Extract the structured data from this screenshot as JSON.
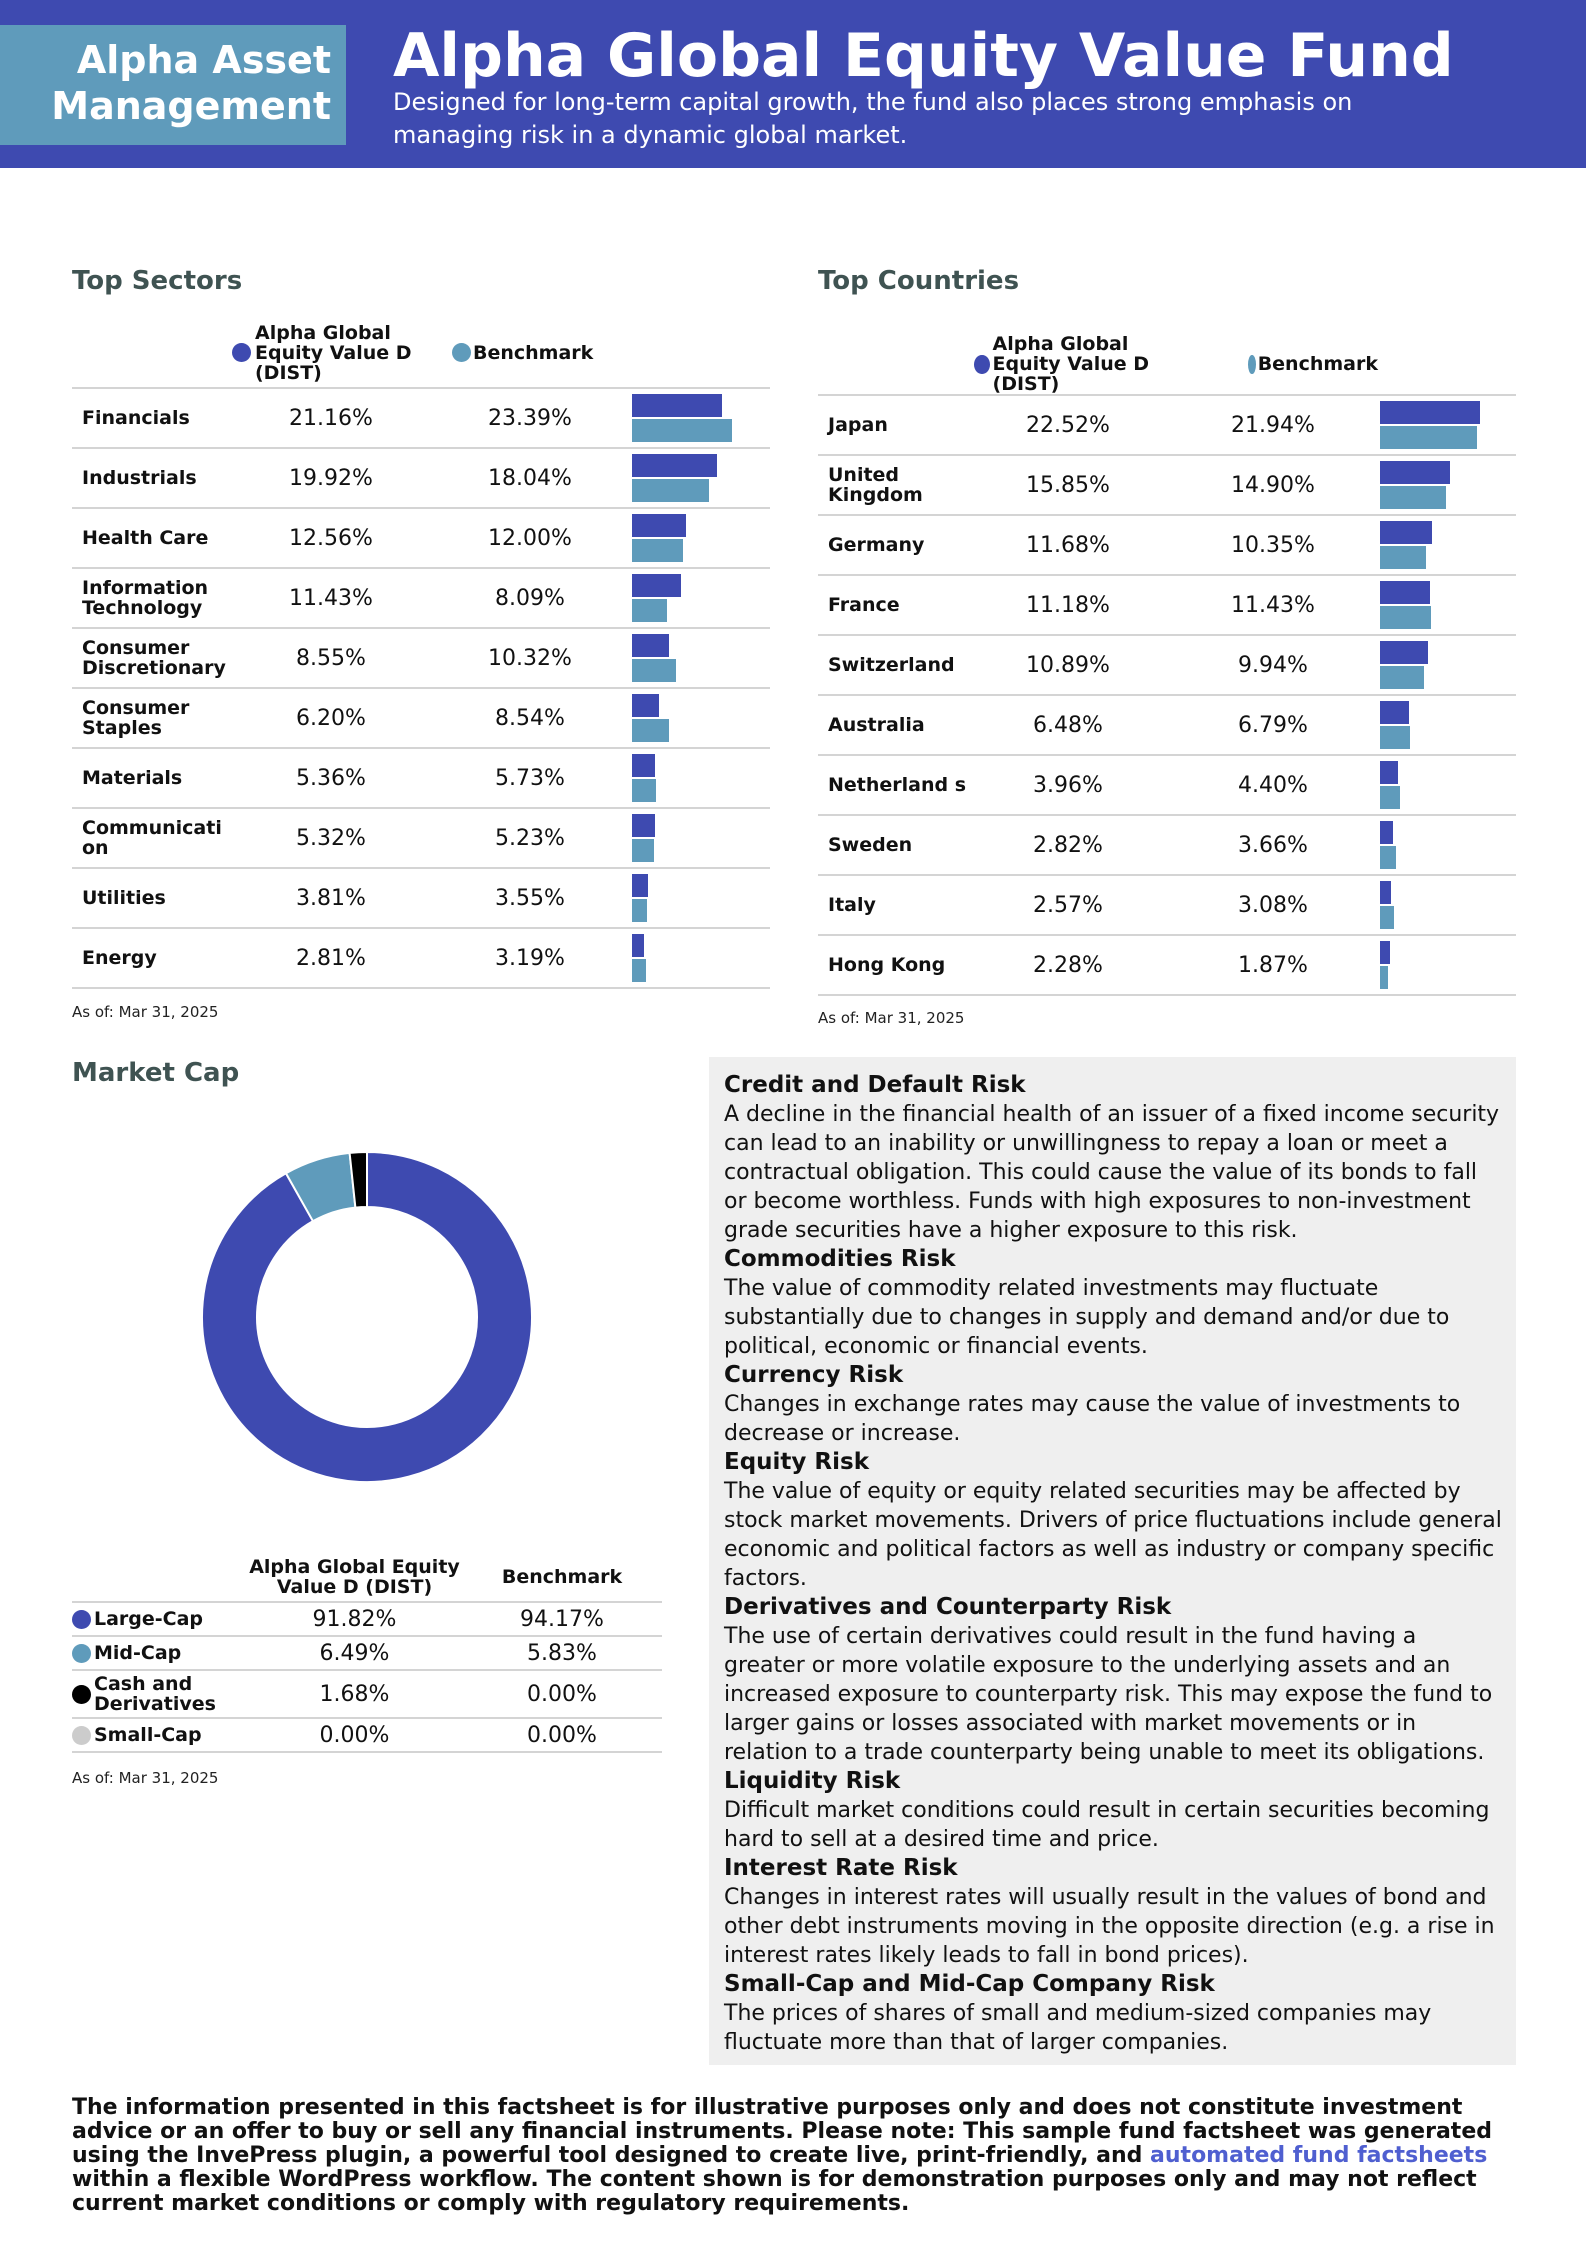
{
  "header": {
    "logo_line1": "Alpha Asset",
    "logo_line2": "Management",
    "title": "Alpha Global Equity Value Fund",
    "subtitle": "Designed for long-term capital growth, the fund also places strong emphasis on managing risk in a dynamic global market."
  },
  "colors": {
    "fund": "#3e4ab0",
    "benchmark": "#5f9bbb",
    "cash": "#000000",
    "small_cap": "#cccccc"
  },
  "sectors": {
    "title": "Top Sectors",
    "fund_header": "Alpha Global Equity Value D (DIST)",
    "benchmark_header": "Benchmark",
    "as_of": "As of: Mar 31, 2025",
    "rows": [
      {
        "label": "Financials",
        "fund": "21.16%",
        "benchmark": "23.39%",
        "fund_value": 21.16,
        "benchmark_value": 23.39
      },
      {
        "label": "Industrials",
        "fund": "19.92%",
        "benchmark": "18.04%",
        "fund_value": 19.92,
        "benchmark_value": 18.04
      },
      {
        "label": "Health Care",
        "fund": "12.56%",
        "benchmark": "12.00%",
        "fund_value": 12.56,
        "benchmark_value": 12.0
      },
      {
        "label": "Information Technology",
        "fund": "11.43%",
        "benchmark": "8.09%",
        "fund_value": 11.43,
        "benchmark_value": 8.09
      },
      {
        "label": "Consumer Discretionary",
        "fund": "8.55%",
        "benchmark": "10.32%",
        "fund_value": 8.55,
        "benchmark_value": 10.32
      },
      {
        "label": "Consumer Staples",
        "fund": "6.20%",
        "benchmark": "8.54%",
        "fund_value": 6.2,
        "benchmark_value": 8.54
      },
      {
        "label": "Materials",
        "fund": "5.36%",
        "benchmark": "5.73%",
        "fund_value": 5.36,
        "benchmark_value": 5.73
      },
      {
        "label": "Communicati on",
        "fund": "5.32%",
        "benchmark": "5.23%",
        "fund_value": 5.32,
        "benchmark_value": 5.23
      },
      {
        "label": "Utilities",
        "fund": "3.81%",
        "benchmark": "3.55%",
        "fund_value": 3.81,
        "benchmark_value": 3.55
      },
      {
        "label": "Energy",
        "fund": "2.81%",
        "benchmark": "3.19%",
        "fund_value": 2.81,
        "benchmark_value": 3.19
      }
    ]
  },
  "countries": {
    "title": "Top Countries",
    "fund_header": "Alpha Global Equity Value D (DIST)",
    "benchmark_header": "Benchmark",
    "as_of": "As of: Mar 31, 2025",
    "rows": [
      {
        "label": "Japan",
        "fund": "22.52%",
        "benchmark": "21.94%",
        "fund_value": 22.52,
        "benchmark_value": 21.94
      },
      {
        "label": "United Kingdom",
        "fund": "15.85%",
        "benchmark": "14.90%",
        "fund_value": 15.85,
        "benchmark_value": 14.9
      },
      {
        "label": "Germany",
        "fund": "11.68%",
        "benchmark": "10.35%",
        "fund_value": 11.68,
        "benchmark_value": 10.35
      },
      {
        "label": "France",
        "fund": "11.18%",
        "benchmark": "11.43%",
        "fund_value": 11.18,
        "benchmark_value": 11.43
      },
      {
        "label": "Switzerland",
        "fund": "10.89%",
        "benchmark": "9.94%",
        "fund_value": 10.89,
        "benchmark_value": 9.94
      },
      {
        "label": "Australia",
        "fund": "6.48%",
        "benchmark": "6.79%",
        "fund_value": 6.48,
        "benchmark_value": 6.79
      },
      {
        "label": "Netherland s",
        "fund": "3.96%",
        "benchmark": "4.40%",
        "fund_value": 3.96,
        "benchmark_value": 4.4
      },
      {
        "label": "Sweden",
        "fund": "2.82%",
        "benchmark": "3.66%",
        "fund_value": 2.82,
        "benchmark_value": 3.66
      },
      {
        "label": "Italy",
        "fund": "2.57%",
        "benchmark": "3.08%",
        "fund_value": 2.57,
        "benchmark_value": 3.08
      },
      {
        "label": "Hong Kong",
        "fund": "2.28%",
        "benchmark": "1.87%",
        "fund_value": 2.28,
        "benchmark_value": 1.87
      }
    ]
  },
  "market_cap": {
    "title": "Market Cap",
    "fund_header": "Alpha Global Equity Value D (DIST)",
    "benchmark_header": "Benchmark",
    "as_of": "As of: Mar 31, 2025",
    "rows": [
      {
        "label": "Large-Cap",
        "fund": "91.82%",
        "benchmark": "94.17%",
        "color": "#3e4ab0"
      },
      {
        "label": "Mid-Cap",
        "fund": "6.49%",
        "benchmark": "5.83%",
        "color": "#5f9bbb"
      },
      {
        "label": "Cash and Derivatives",
        "fund": "1.68%",
        "benchmark": "0.00%",
        "color": "#000000"
      },
      {
        "label": "Small-Cap",
        "fund": "0.00%",
        "benchmark": "0.00%",
        "color": "#cccccc"
      }
    ]
  },
  "chart_data": {
    "type": "pie",
    "categories": [
      "Large-Cap",
      "Mid-Cap",
      "Cash and Derivatives",
      "Small-Cap"
    ],
    "values": [
      91.82,
      6.49,
      1.68,
      0.0
    ],
    "colors": [
      "#3e4ab0",
      "#5f9bbb",
      "#000000",
      "#cccccc"
    ],
    "donut": true
  },
  "risks": [
    {
      "title": "Credit and Default Risk",
      "text": "A decline in the financial health of an issuer of a fixed income security can lead to an inability or unwillingness to repay a loan or meet a contractual obligation. This could cause the value of its bonds to fall or become worthless. Funds with high exposures to non-investment grade securities have a higher exposure to this risk."
    },
    {
      "title": "Commodities Risk",
      "text": "The value of commodity related investments may fluctuate substantially due to changes in supply and demand and/or due to political, economic or financial events."
    },
    {
      "title": "Currency Risk",
      "text": "Changes in exchange rates may cause the value of investments to decrease or increase."
    },
    {
      "title": "Equity Risk",
      "text": "The value of equity or equity related securities may be affected by stock market movements. Drivers of price fluctuations include general economic and political factors as well as industry or company specific factors."
    },
    {
      "title": "Derivatives and Counterparty Risk",
      "text": "The use of certain derivatives could result in the fund having a greater or more volatile exposure to the underlying assets and an increased exposure to counterparty risk. This may expose the fund to larger gains or losses associated with market movements or in relation to a trade counterparty being unable to meet its obligations."
    },
    {
      "title": "Liquidity Risk",
      "text": "Difficult market conditions could result in certain securities becoming hard to sell at a desired time and price."
    },
    {
      "title": "Interest Rate Risk",
      "text": "Changes in interest rates will usually result in the values of bond and other debt instruments moving in the opposite direction (e.g. a rise in interest rates likely leads to fall in bond prices)."
    },
    {
      "title": "Small-Cap and Mid-Cap Company Risk",
      "text": "The prices of shares of small and medium-sized companies may fluctuate more than that of larger companies."
    }
  ],
  "disclaimer": {
    "before": "The information presented in this factsheet is for illustrative purposes only and does not constitute investment advice or an offer to buy or sell any financial instruments. Please note: This sample fund factsheet was generated using the InvePress plugin, a powerful tool designed to create live, print-friendly, and ",
    "link": "automated fund factsheets",
    "after": " within a flexible WordPress workflow. The content shown is for demonstration purposes only and may not reflect current market conditions or comply with regulatory requirements."
  }
}
